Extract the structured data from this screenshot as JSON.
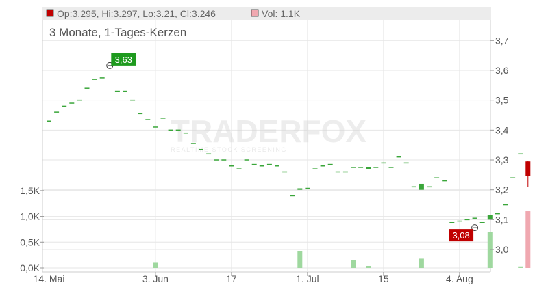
{
  "header": {
    "ohlc_text": "Op:3.295, Hi:3.297, Lo:3.21, Cl:3.246",
    "vol_text": "Vol: 1.1K",
    "ohlc_color": "#c00000",
    "vol_color": "#f0a8b0"
  },
  "subtitle": "3 Monate, 1-Tages-Kerzen",
  "watermark": {
    "main": "TRADERFOX",
    "tagline": "REALTIME STOCK SCREENING"
  },
  "chart_data": {
    "type": "candlestick",
    "price_axis": {
      "min": 2.92,
      "max": 3.79,
      "ticks": [
        3.0,
        3.1,
        3.2,
        3.3,
        3.4,
        3.5,
        3.6,
        3.7
      ],
      "tick_labels": [
        "3,0",
        "3,1",
        "3,2",
        "3,3",
        "3,4",
        "3,5",
        "3,6",
        "3,7"
      ],
      "position": "right"
    },
    "volume_axis": {
      "max": 1.75,
      "ticks": [
        0,
        0.5,
        1.0,
        1.5
      ],
      "tick_labels": [
        "0,0K",
        "0,5K",
        "1,0K",
        "1,5K"
      ],
      "position": "left"
    },
    "x_axis": {
      "ticks": [
        {
          "index": 0,
          "label": "14. Mai"
        },
        {
          "index": 14,
          "label": "3. Jun"
        },
        {
          "index": 24,
          "label": "17"
        },
        {
          "index": 34,
          "label": "1. Jul"
        },
        {
          "index": 44,
          "label": "15"
        },
        {
          "index": 54,
          "label": "4. Aug"
        }
      ]
    },
    "colors": {
      "up": "#3aa63a",
      "down": "#c00000",
      "up_volume": "#9fd89f",
      "down_volume": "#f0a8b0",
      "grid": "#e6e6e6"
    },
    "candles": [
      {
        "o": 3.43,
        "c": 3.43,
        "v": 0
      },
      {
        "o": 3.46,
        "c": 3.46,
        "v": 0
      },
      {
        "o": 3.48,
        "c": 3.48,
        "v": 0
      },
      {
        "o": 3.49,
        "c": 3.49,
        "v": 0
      },
      {
        "o": 3.5,
        "c": 3.5,
        "v": 0
      },
      {
        "o": 3.54,
        "c": 3.54,
        "v": 0
      },
      {
        "o": 3.57,
        "c": 3.57,
        "v": 0
      },
      {
        "o": 3.575,
        "c": 3.575,
        "v": 0
      },
      {
        "o": 3.61,
        "c": 3.61,
        "v": 0
      },
      {
        "o": 3.53,
        "c": 3.53,
        "v": 0
      },
      {
        "o": 3.53,
        "c": 3.53,
        "v": 0
      },
      {
        "o": 3.5,
        "c": 3.5,
        "v": 0
      },
      {
        "o": 3.455,
        "c": 3.455,
        "v": 0
      },
      {
        "o": 3.435,
        "c": 3.435,
        "v": 0
      },
      {
        "o": 3.41,
        "c": 3.41,
        "v": 0.1
      },
      {
        "o": 3.44,
        "c": 3.44,
        "v": 0
      },
      {
        "o": 3.4,
        "c": 3.4,
        "v": 0
      },
      {
        "o": 3.4,
        "c": 3.4,
        "v": 0
      },
      {
        "o": 3.39,
        "c": 3.39,
        "v": 0
      },
      {
        "o": 3.355,
        "c": 3.355,
        "v": 0
      },
      {
        "o": 3.335,
        "c": 3.335,
        "v": 0
      },
      {
        "o": 3.32,
        "c": 3.32,
        "v": 0
      },
      {
        "o": 3.3,
        "c": 3.3,
        "v": 0
      },
      {
        "o": 3.3,
        "c": 3.3,
        "v": 0
      },
      {
        "o": 3.28,
        "c": 3.28,
        "v": 0
      },
      {
        "o": 3.27,
        "c": 3.27,
        "v": 0
      },
      {
        "o": 3.3,
        "c": 3.3,
        "v": 0
      },
      {
        "o": 3.285,
        "c": 3.285,
        "v": 0
      },
      {
        "o": 3.28,
        "c": 3.28,
        "v": 0
      },
      {
        "o": 3.285,
        "c": 3.285,
        "v": 0
      },
      {
        "o": 3.28,
        "c": 3.28,
        "v": 0
      },
      {
        "o": 3.26,
        "c": 3.26,
        "v": 0
      },
      {
        "o": 3.18,
        "c": 3.18,
        "v": 0
      },
      {
        "o": 3.2,
        "c": 3.205,
        "v": 0.33
      },
      {
        "o": 3.205,
        "c": 3.205,
        "v": 0
      },
      {
        "o": 3.27,
        "c": 3.27,
        "v": 0
      },
      {
        "o": 3.28,
        "c": 3.28,
        "v": 0
      },
      {
        "o": 3.285,
        "c": 3.285,
        "v": 0
      },
      {
        "o": 3.26,
        "c": 3.26,
        "v": 0
      },
      {
        "o": 3.26,
        "c": 3.26,
        "v": 0
      },
      {
        "o": 3.275,
        "c": 3.275,
        "v": 0.15
      },
      {
        "o": 3.275,
        "c": 3.275,
        "v": 0
      },
      {
        "o": 3.27,
        "c": 3.275,
        "v": 0.04
      },
      {
        "o": 3.275,
        "c": 3.275,
        "v": 0
      },
      {
        "o": 3.29,
        "c": 3.29,
        "v": 0
      },
      {
        "o": 3.275,
        "c": 3.275,
        "v": 0
      },
      {
        "o": 3.31,
        "c": 3.31,
        "v": 0
      },
      {
        "o": 3.29,
        "c": 3.29,
        "v": 0
      },
      {
        "o": 3.21,
        "c": 3.21,
        "v": 0
      },
      {
        "o": 3.2,
        "c": 3.22,
        "v": 0.18
      },
      {
        "o": 3.21,
        "c": 3.21,
        "v": 0
      },
      {
        "o": 3.24,
        "c": 3.24,
        "v": 0
      },
      {
        "o": 3.23,
        "c": 3.23,
        "v": 0
      },
      {
        "o": 3.09,
        "c": 3.09,
        "v": 0
      },
      {
        "o": 3.095,
        "c": 3.095,
        "v": 0
      },
      {
        "o": 3.1,
        "c": 3.1,
        "v": 0
      },
      {
        "o": 3.105,
        "c": 3.105,
        "v": 0
      },
      {
        "o": 3.09,
        "c": 3.09,
        "v": 0
      },
      {
        "o": 3.1,
        "c": 3.115,
        "v": 0.7
      },
      {
        "o": 3.12,
        "c": 3.12,
        "v": 0
      },
      {
        "o": 3.15,
        "c": 3.15,
        "v": 0
      },
      {
        "o": 3.24,
        "c": 3.24,
        "v": 0
      },
      {
        "o": 3.32,
        "c": 3.32,
        "v": 0.03
      },
      {
        "o": 3.295,
        "c": 3.246,
        "h": 3.297,
        "l": 3.21,
        "v": 1.1
      }
    ],
    "annotations": [
      {
        "index": 8,
        "value": 3.63,
        "label": "3,63",
        "kind": "high",
        "color": "#1e9a1e"
      },
      {
        "index": 56,
        "value": 3.08,
        "label": "3,08",
        "kind": "low",
        "color": "#c00000"
      }
    ]
  }
}
